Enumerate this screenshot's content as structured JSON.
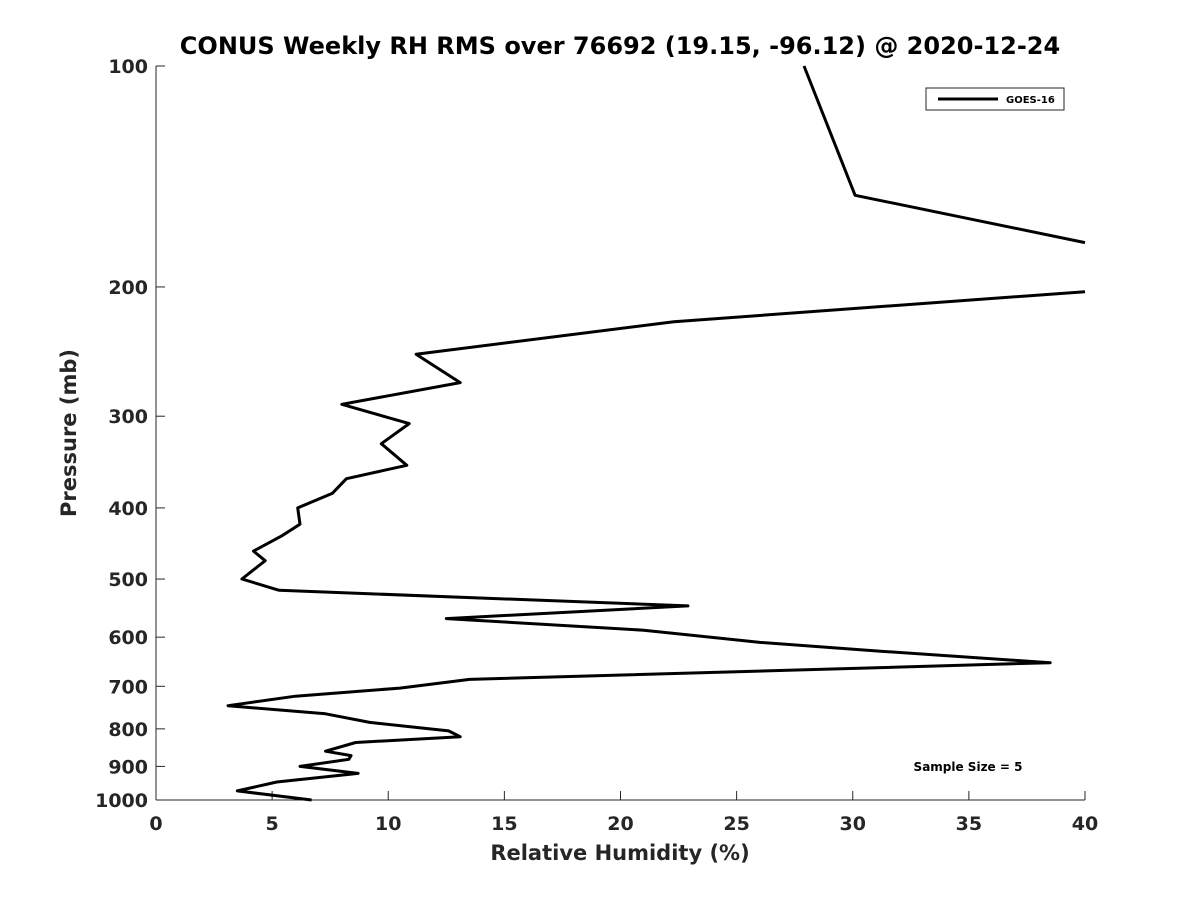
{
  "chart_data": {
    "type": "line",
    "title": "CONUS Weekly RH RMS over 76692 (19.15, -96.12) @ 2020-12-24",
    "xlabel": "Relative Humidity (%)",
    "ylabel": "Pressure (mb)",
    "xlim": [
      0,
      40
    ],
    "ylim": [
      100,
      1000
    ],
    "y_scale": "log",
    "y_reversed": true,
    "grid": false,
    "legend_position": "top-right",
    "x_ticks": [
      "0",
      "5",
      "10",
      "15",
      "20",
      "25",
      "30",
      "35",
      "40"
    ],
    "y_ticks": [
      "100",
      "200",
      "300",
      "400",
      "500",
      "600",
      "700",
      "800",
      "900",
      "1000"
    ],
    "annotation": "Sample Size = 5",
    "series": [
      {
        "name": "GOES-16",
        "color": "#000000",
        "points": [
          [
            27.9,
            100
          ],
          [
            30.1,
            150
          ],
          [
            40,
            174
          ],
          [
            40,
            203
          ],
          [
            22.3,
            223
          ],
          [
            11.2,
            247
          ],
          [
            13.1,
            270
          ],
          [
            8.0,
            289
          ],
          [
            10.9,
            307
          ],
          [
            9.7,
            327
          ],
          [
            10.8,
            350
          ],
          [
            8.2,
            365
          ],
          [
            7.6,
            382
          ],
          [
            6.1,
            400
          ],
          [
            6.2,
            421
          ],
          [
            5.4,
            437
          ],
          [
            4.2,
            458
          ],
          [
            4.7,
            472
          ],
          [
            3.7,
            500
          ],
          [
            5.3,
            518
          ],
          [
            22.9,
            544
          ],
          [
            12.5,
            566
          ],
          [
            21.0,
            587
          ],
          [
            26.0,
            610
          ],
          [
            31.2,
            627
          ],
          [
            38.5,
            650
          ],
          [
            27.6,
            665
          ],
          [
            13.5,
            685
          ],
          [
            10.5,
            704
          ],
          [
            6.0,
            722
          ],
          [
            3.1,
            744
          ],
          [
            7.3,
            763
          ],
          [
            9.2,
            784
          ],
          [
            12.6,
            805
          ],
          [
            13.1,
            820
          ],
          [
            8.6,
            835
          ],
          [
            7.3,
            858
          ],
          [
            8.4,
            870
          ],
          [
            8.3,
            880
          ],
          [
            6.2,
            900
          ],
          [
            8.7,
            920
          ],
          [
            5.2,
            945
          ],
          [
            3.5,
            972
          ],
          [
            6.7,
            1000
          ]
        ]
      }
    ]
  }
}
